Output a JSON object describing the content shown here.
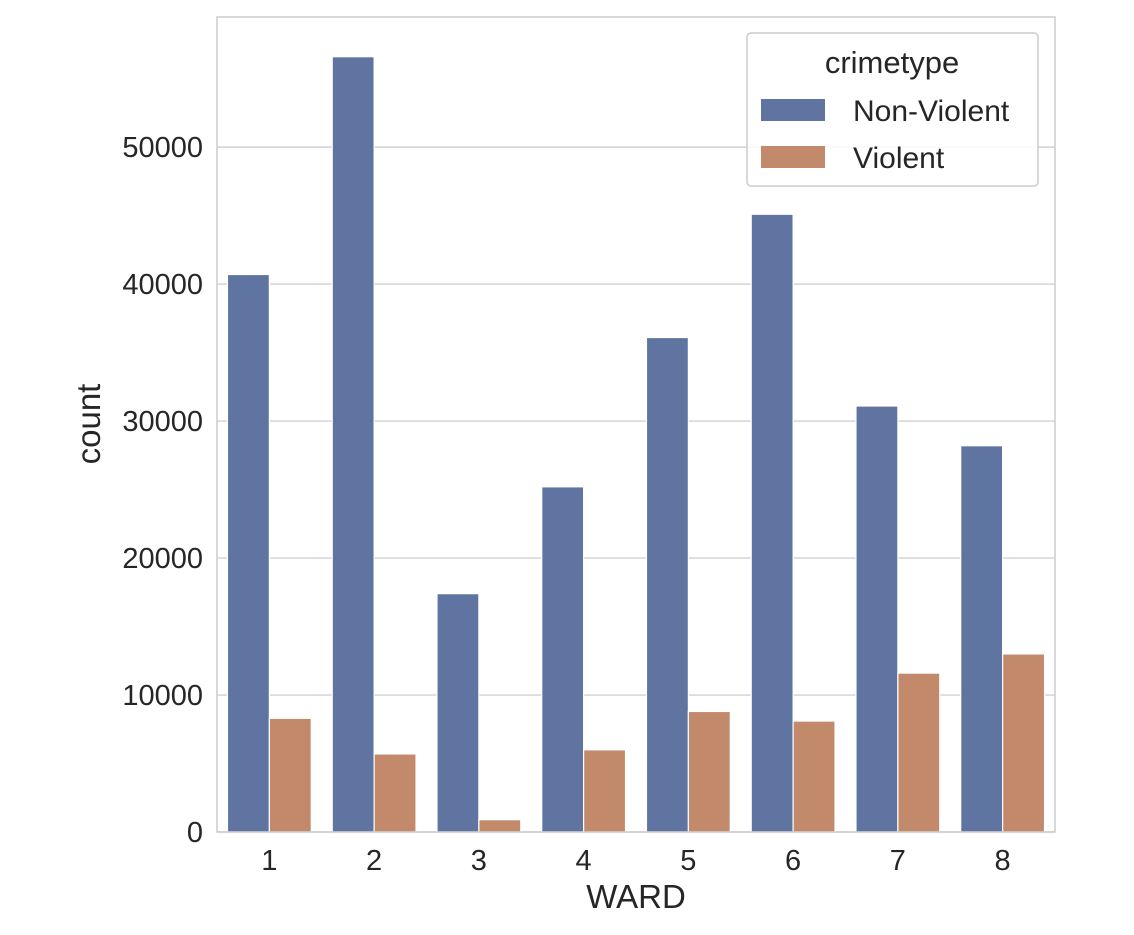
{
  "chart_data": {
    "type": "bar",
    "xlabel": "WARD",
    "ylabel": "count",
    "categories": [
      "1",
      "2",
      "3",
      "4",
      "5",
      "6",
      "7",
      "8"
    ],
    "ylim": [
      0,
      59500
    ],
    "yticks": [
      0,
      10000,
      20000,
      30000,
      40000,
      50000
    ],
    "ytick_labels": [
      "0",
      "10000",
      "20000",
      "30000",
      "40000",
      "50000"
    ],
    "grid": "horizontal",
    "legend": {
      "title": "crimetype",
      "placement": "top-right"
    },
    "series": [
      {
        "name": "Non-Violent",
        "color": "#5f74a1",
        "values": [
          40700,
          56600,
          17400,
          25200,
          36100,
          45100,
          31100,
          28200
        ]
      },
      {
        "name": "Violent",
        "color": "#c2896a",
        "values": [
          8300,
          5700,
          900,
          6000,
          8800,
          8100,
          11600,
          13000
        ]
      }
    ]
  }
}
